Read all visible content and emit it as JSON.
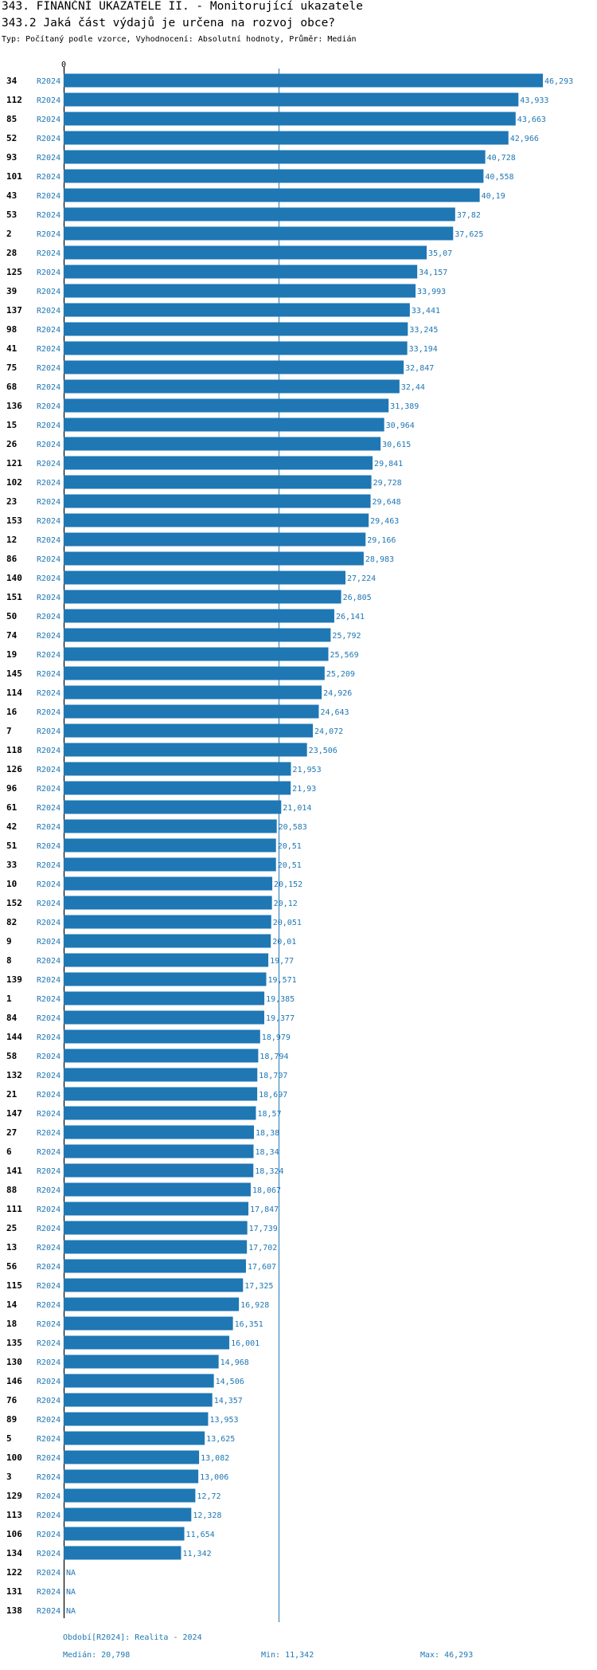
{
  "header": {
    "title": "343. FINANČNÍ UKAZATELE II. - Monitorující ukazatele",
    "subtitle": "343.2 Jaká část výdajů je určena na rozvoj obce?",
    "description": "Typ: Počítaný podle vzorce, Vyhodnocení: Absolutní hodnoty, Průměr: Medián"
  },
  "chart_data": {
    "type": "bar",
    "orientation": "horizontal",
    "axis_zero_label": "0",
    "xlim": [
      0,
      46.293
    ],
    "median": 20.798,
    "colors": {
      "bar": "#1f77b4",
      "label": "#1f77b4",
      "median_line": "#1f77b4"
    },
    "series_label": "R2024",
    "na_label": "NA",
    "categories": [
      "34",
      "112",
      "85",
      "52",
      "93",
      "101",
      "43",
      "53",
      "2",
      "28",
      "125",
      "39",
      "137",
      "98",
      "41",
      "75",
      "68",
      "136",
      "15",
      "26",
      "121",
      "102",
      "23",
      "153",
      "12",
      "86",
      "140",
      "151",
      "50",
      "74",
      "19",
      "145",
      "114",
      "16",
      "7",
      "118",
      "126",
      "96",
      "61",
      "42",
      "51",
      "33",
      "10",
      "152",
      "82",
      "9",
      "8",
      "139",
      "1",
      "84",
      "144",
      "58",
      "132",
      "21",
      "147",
      "27",
      "6",
      "141",
      "88",
      "111",
      "25",
      "13",
      "56",
      "115",
      "14",
      "18",
      "135",
      "130",
      "146",
      "76",
      "89",
      "5",
      "100",
      "3",
      "129",
      "113",
      "106",
      "134",
      "122",
      "131",
      "138"
    ],
    "values": [
      46.293,
      43.933,
      43.663,
      42.966,
      40.728,
      40.558,
      40.19,
      37.82,
      37.625,
      35.07,
      34.157,
      33.993,
      33.441,
      33.245,
      33.194,
      32.847,
      32.44,
      31.389,
      30.964,
      30.615,
      29.841,
      29.728,
      29.648,
      29.463,
      29.166,
      28.983,
      27.224,
      26.805,
      26.141,
      25.792,
      25.569,
      25.209,
      24.926,
      24.643,
      24.072,
      23.506,
      21.953,
      21.93,
      21.014,
      20.583,
      20.51,
      20.51,
      20.152,
      20.12,
      20.051,
      20.01,
      19.77,
      19.571,
      19.385,
      19.377,
      18.979,
      18.794,
      18.707,
      18.697,
      18.57,
      18.38,
      18.34,
      18.324,
      18.067,
      17.847,
      17.739,
      17.702,
      17.607,
      17.325,
      16.928,
      16.351,
      16.001,
      14.968,
      14.506,
      14.357,
      13.953,
      13.625,
      13.082,
      13.006,
      12.72,
      12.328,
      11.654,
      11.342,
      null,
      null,
      null
    ],
    "value_labels": [
      "46,293",
      "43,933",
      "43,663",
      "42,966",
      "40,728",
      "40,558",
      "40,19",
      "37,82",
      "37,625",
      "35,07",
      "34,157",
      "33,993",
      "33,441",
      "33,245",
      "33,194",
      "32,847",
      "32,44",
      "31,389",
      "30,964",
      "30,615",
      "29,841",
      "29,728",
      "29,648",
      "29,463",
      "29,166",
      "28,983",
      "27,224",
      "26,805",
      "26,141",
      "25,792",
      "25,569",
      "25,209",
      "24,926",
      "24,643",
      "24,072",
      "23,506",
      "21,953",
      "21,93",
      "21,014",
      "20,583",
      "20,51",
      "20,51",
      "20,152",
      "20,12",
      "20,051",
      "20,01",
      "19,77",
      "19,571",
      "19,385",
      "19,377",
      "18,979",
      "18,794",
      "18,707",
      "18,697",
      "18,57",
      "18,38",
      "18,34",
      "18,324",
      "18,067",
      "17,847",
      "17,739",
      "17,702",
      "17,607",
      "17,325",
      "16,928",
      "16,351",
      "16,001",
      "14,968",
      "14,506",
      "14,357",
      "13,953",
      "13,625",
      "13,082",
      "13,006",
      "12,72",
      "12,328",
      "11,654",
      "11,342",
      "NA",
      "NA",
      "NA"
    ]
  },
  "footer": {
    "period": "Období[R2024]: Realita - 2024",
    "median": "Medián: 20,798",
    "min": "Min: 11,342",
    "max": "Max: 46,293"
  }
}
